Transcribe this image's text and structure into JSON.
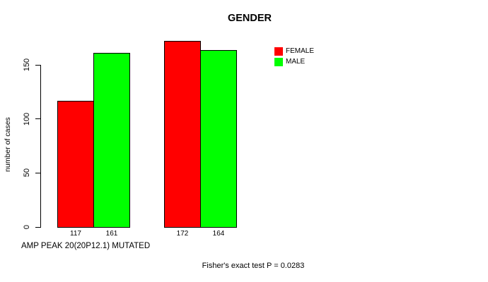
{
  "chart_data": {
    "type": "bar",
    "title": "GENDER",
    "ylabel": "number of cases",
    "xlabel": "AMP PEAK 20(20P12.1) MUTATED",
    "annotation": "Fisher's exact test P = 0.0283",
    "legend_position": "right-of-plot",
    "grid": false,
    "ylim": [
      0,
      150
    ],
    "yticks": [
      0,
      50,
      100,
      150
    ],
    "n_groups": 2,
    "series": [
      {
        "name": "FEMALE",
        "color": "#ff0000",
        "values": [
          117,
          172
        ]
      },
      {
        "name": "MALE",
        "color": "#00ff00",
        "values": [
          161,
          164
        ]
      }
    ],
    "bar_value_labels": [
      "117",
      "161",
      "172",
      "164"
    ],
    "colors": {
      "female": "#ff0000",
      "male": "#00ff00",
      "bar_border": "#000000",
      "text": "#000000",
      "background": "#ffffff"
    }
  }
}
